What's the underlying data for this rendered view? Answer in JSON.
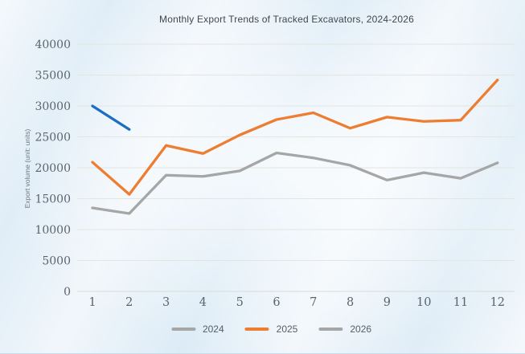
{
  "chart_data": {
    "type": "line",
    "title": "Monthly Export Trends of Tracked Excavators, 2024-2026",
    "xlabel": "",
    "ylabel": "Export volume (unit: units)",
    "x": [
      1,
      2,
      3,
      4,
      5,
      6,
      7,
      8,
      9,
      10,
      11,
      12
    ],
    "ylim": [
      0,
      40000
    ],
    "ytick_step": 5000,
    "grid": "horizontal",
    "legend_position": "bottom",
    "background_color": "#e8f1f8",
    "gridline_color": "#e2e5e0",
    "tick_label_color": "#5a646e",
    "series": [
      {
        "name": "2024",
        "color": "#a6a6a6",
        "legend_color": "#a6a6a6",
        "values": [
          13500,
          12600,
          18800,
          18600,
          19500,
          22400,
          21600,
          20400,
          18000,
          19200,
          18300,
          20800
        ]
      },
      {
        "name": "2025",
        "color": "#ed7d31",
        "legend_color": "#ed7d31",
        "values": [
          20900,
          15700,
          23600,
          22300,
          25300,
          27800,
          28900,
          26400,
          28200,
          27500,
          27700,
          34200
        ]
      },
      {
        "name": "2026",
        "color": "#1b6ec2",
        "legend_color": "#a6a6a6",
        "values": [
          30000,
          26200,
          null,
          null,
          null,
          null,
          null,
          null,
          null,
          null,
          null,
          null
        ]
      }
    ]
  }
}
